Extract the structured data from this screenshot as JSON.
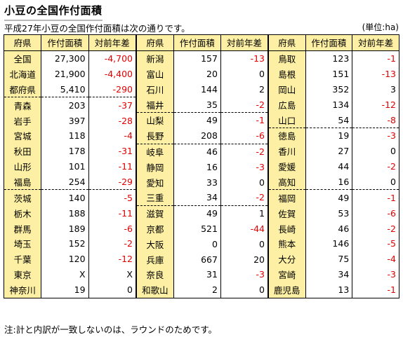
{
  "title": "小豆の全国作付面積",
  "subtitle": "平成27年小豆の全国作付面積は次の通りです。",
  "unit": "(単位:ha)",
  "note": "注:計と内訳が一致しないのは、ラウンドのためです。",
  "headers": [
    "府県",
    "作付面積",
    "対前年差"
  ],
  "columns": [
    [
      {
        "pref": "全国",
        "area": "27,300",
        "diff": "-4,700",
        "neg": true
      },
      {
        "pref": "北海道",
        "area": "21,900",
        "diff": "-4,400",
        "neg": true
      },
      {
        "pref": "都府県",
        "area": "5,410",
        "diff": "-290",
        "neg": true
      },
      {
        "pref": "青森",
        "area": "203",
        "diff": "-37",
        "neg": true,
        "sep": true
      },
      {
        "pref": "岩手",
        "area": "397",
        "diff": "-28",
        "neg": true
      },
      {
        "pref": "宮城",
        "area": "118",
        "diff": "-4",
        "neg": true
      },
      {
        "pref": "秋田",
        "area": "178",
        "diff": "-31",
        "neg": true
      },
      {
        "pref": "山形",
        "area": "101",
        "diff": "-11",
        "neg": true
      },
      {
        "pref": "福島",
        "area": "254",
        "diff": "-29",
        "neg": true
      },
      {
        "pref": "茨城",
        "area": "140",
        "diff": "-5",
        "neg": true,
        "sep": true
      },
      {
        "pref": "栃木",
        "area": "188",
        "diff": "-11",
        "neg": true
      },
      {
        "pref": "群馬",
        "area": "189",
        "diff": "-6",
        "neg": true
      },
      {
        "pref": "埼玉",
        "area": "152",
        "diff": "-2",
        "neg": true
      },
      {
        "pref": "千葉",
        "area": "120",
        "diff": "-12",
        "neg": true
      },
      {
        "pref": "東京",
        "area": "X",
        "diff": "X",
        "neg": false
      },
      {
        "pref": "神奈川",
        "area": "19",
        "diff": "0",
        "neg": false
      }
    ],
    [
      {
        "pref": "新潟",
        "area": "157",
        "diff": "-13",
        "neg": true
      },
      {
        "pref": "富山",
        "area": "20",
        "diff": "0",
        "neg": false
      },
      {
        "pref": "石川",
        "area": "144",
        "diff": "2",
        "neg": false
      },
      {
        "pref": "福井",
        "area": "35",
        "diff": "-2",
        "neg": true
      },
      {
        "pref": "山梨",
        "area": "49",
        "diff": "-1",
        "neg": true,
        "sep": true
      },
      {
        "pref": "長野",
        "area": "208",
        "diff": "-6",
        "neg": true
      },
      {
        "pref": "岐阜",
        "area": "46",
        "diff": "-2",
        "neg": true,
        "sep": true
      },
      {
        "pref": "静岡",
        "area": "16",
        "diff": "-3",
        "neg": true
      },
      {
        "pref": "愛知",
        "area": "33",
        "diff": "0",
        "neg": false
      },
      {
        "pref": "三重",
        "area": "34",
        "diff": "-2",
        "neg": true
      },
      {
        "pref": "滋賀",
        "area": "49",
        "diff": "1",
        "neg": false,
        "sep": true
      },
      {
        "pref": "京都",
        "area": "521",
        "diff": "-44",
        "neg": true
      },
      {
        "pref": "大阪",
        "area": "0",
        "diff": "0",
        "neg": false
      },
      {
        "pref": "兵庫",
        "area": "667",
        "diff": "20",
        "neg": false
      },
      {
        "pref": "奈良",
        "area": "31",
        "diff": "-3",
        "neg": true
      },
      {
        "pref": "和歌山",
        "area": "2",
        "diff": "0",
        "neg": false
      }
    ],
    [
      {
        "pref": "鳥取",
        "area": "123",
        "diff": "-1",
        "neg": true
      },
      {
        "pref": "島根",
        "area": "151",
        "diff": "-13",
        "neg": true
      },
      {
        "pref": "岡山",
        "area": "352",
        "diff": "3",
        "neg": false
      },
      {
        "pref": "広島",
        "area": "134",
        "diff": "-12",
        "neg": true
      },
      {
        "pref": "山口",
        "area": "54",
        "diff": "-8",
        "neg": true
      },
      {
        "pref": "徳島",
        "area": "19",
        "diff": "-3",
        "neg": true,
        "sep": true
      },
      {
        "pref": "香川",
        "area": "27",
        "diff": "0",
        "neg": false
      },
      {
        "pref": "愛媛",
        "area": "44",
        "diff": "-2",
        "neg": true
      },
      {
        "pref": "高知",
        "area": "16",
        "diff": "0",
        "neg": false
      },
      {
        "pref": "福岡",
        "area": "49",
        "diff": "-1",
        "neg": true,
        "sep": true
      },
      {
        "pref": "佐賀",
        "area": "53",
        "diff": "-6",
        "neg": true
      },
      {
        "pref": "長崎",
        "area": "46",
        "diff": "-2",
        "neg": true
      },
      {
        "pref": "熊本",
        "area": "146",
        "diff": "-5",
        "neg": true
      },
      {
        "pref": "大分",
        "area": "75",
        "diff": "-4",
        "neg": true
      },
      {
        "pref": "宮崎",
        "area": "34",
        "diff": "-3",
        "neg": true
      },
      {
        "pref": "鹿児島",
        "area": "13",
        "diff": "-1",
        "neg": true
      }
    ]
  ],
  "colors": {
    "header_bg": "#fdf0a4",
    "negative": "#e00000"
  }
}
